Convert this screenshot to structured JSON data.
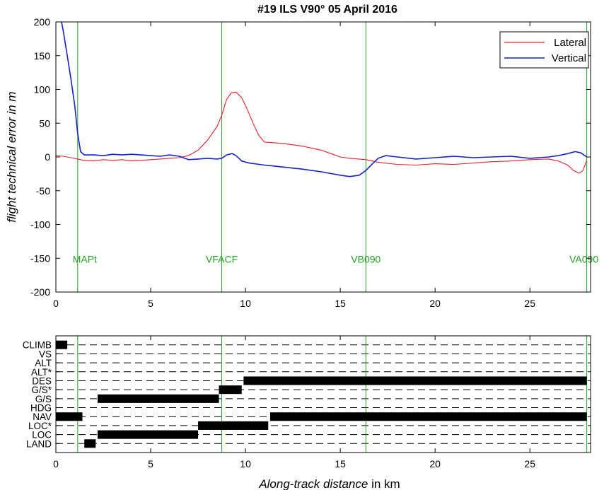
{
  "chart_data": [
    {
      "type": "line",
      "title": "#19 ILS V90°  05 April 2016",
      "ylabel": "flight technical error in m",
      "xlabel": "",
      "xlim": [
        0,
        28.2
      ],
      "ylim": [
        -200,
        200
      ],
      "xticks": [
        0,
        5,
        10,
        15,
        20,
        25
      ],
      "yticks": [
        -200,
        -150,
        -100,
        -50,
        0,
        50,
        100,
        150,
        200
      ],
      "legend_position": "top-right",
      "colors": {
        "lateral": "#e8202a",
        "vertical": "#1422c8",
        "marker": "#22a022"
      },
      "markers": [
        {
          "label": "MAPt",
          "x": 1.15
        },
        {
          "label": "VFACF",
          "x": 8.75
        },
        {
          "label": "VB090",
          "x": 16.35
        },
        {
          "label": "VA090",
          "x": 28.0
        }
      ],
      "marker_label_y": -150,
      "series": [
        {
          "name": "Lateral",
          "x": [
            0,
            0.4,
            0.8,
            1.15,
            1.5,
            2.0,
            2.5,
            3.0,
            3.5,
            4.0,
            4.5,
            5.0,
            5.5,
            6.0,
            6.5,
            7.0,
            7.5,
            8.0,
            8.5,
            8.75,
            9.0,
            9.25,
            9.5,
            9.8,
            10.1,
            10.4,
            10.7,
            11.0,
            11.5,
            12.0,
            12.5,
            13.0,
            13.5,
            14.0,
            14.5,
            15.0,
            15.5,
            16.0,
            16.35,
            16.7,
            17.0,
            18.0,
            19.0,
            20.0,
            21.0,
            22.0,
            23.0,
            24.0,
            25.0,
            26.0,
            26.5,
            27.0,
            27.3,
            27.6,
            27.8,
            28.0
          ],
          "values": [
            2,
            1,
            -1,
            -3,
            -5,
            -6,
            -4,
            -5,
            -4,
            -6,
            -5,
            -4,
            -3,
            -2,
            -1,
            2,
            10,
            25,
            45,
            62,
            85,
            95,
            96,
            88,
            70,
            50,
            32,
            22,
            21,
            20,
            18,
            16,
            13,
            10,
            5,
            0,
            -2,
            -3,
            -4,
            -6,
            -8,
            -11,
            -12,
            -10,
            -11,
            -9,
            -7,
            -6,
            -4,
            -3,
            -6,
            -12,
            -20,
            -24,
            -20,
            -5
          ]
        },
        {
          "name": "Vertical",
          "x": [
            0.3,
            0.4,
            0.6,
            0.8,
            1.0,
            1.15,
            1.3,
            1.5,
            2.0,
            2.5,
            3.0,
            3.5,
            4.0,
            4.5,
            5.0,
            5.5,
            6.0,
            6.5,
            7.0,
            7.5,
            8.0,
            8.5,
            8.75,
            9.0,
            9.3,
            9.5,
            9.8,
            10.2,
            11.0,
            12.0,
            13.0,
            14.0,
            15.0,
            15.5,
            16.0,
            16.35,
            16.7,
            17.0,
            17.4,
            18.0,
            19.0,
            20.0,
            21.0,
            22.0,
            23.0,
            24.0,
            25.0,
            26.0,
            26.5,
            27.0,
            27.4,
            27.7,
            28.0
          ],
          "values": [
            200,
            185,
            150,
            115,
            75,
            35,
            8,
            3,
            3,
            2,
            4,
            3,
            4,
            3,
            2,
            1,
            3,
            1,
            -4,
            -3,
            -2,
            -3,
            -2,
            3,
            5,
            2,
            -6,
            -9,
            -12,
            -15,
            -18,
            -22,
            -27,
            -29,
            -27,
            -20,
            -10,
            -2,
            2,
            0,
            -3,
            -1,
            1,
            -1,
            0,
            1,
            -2,
            0,
            2,
            5,
            8,
            6,
            0
          ]
        }
      ]
    },
    {
      "type": "timeline",
      "xlabel_italic": "Along-track distance",
      "xlabel_unit": " in km",
      "xlim": [
        0,
        28.2
      ],
      "xticks": [
        0,
        5,
        10,
        15,
        20,
        25
      ],
      "categories": [
        "CLIMB",
        "VS",
        "ALT",
        "ALT*",
        "DES",
        "G/S*",
        "G/S",
        "HDG",
        "NAV",
        "LOC*",
        "LOC",
        "LAND"
      ],
      "markers_x": [
        1.15,
        8.75,
        16.35,
        28.0
      ],
      "segments": [
        {
          "mode": "CLIMB",
          "start": 0.0,
          "end": 0.6
        },
        {
          "mode": "DES",
          "start": 9.9,
          "end": 28.0
        },
        {
          "mode": "G/S*",
          "start": 8.6,
          "end": 9.8
        },
        {
          "mode": "G/S",
          "start": 2.2,
          "end": 8.6
        },
        {
          "mode": "NAV",
          "start": 0.0,
          "end": 1.4
        },
        {
          "mode": "NAV",
          "start": 11.3,
          "end": 28.0
        },
        {
          "mode": "LOC*",
          "start": 7.5,
          "end": 11.2
        },
        {
          "mode": "LOC",
          "start": 2.2,
          "end": 7.5
        },
        {
          "mode": "LAND",
          "start": 1.5,
          "end": 2.1
        }
      ]
    }
  ]
}
